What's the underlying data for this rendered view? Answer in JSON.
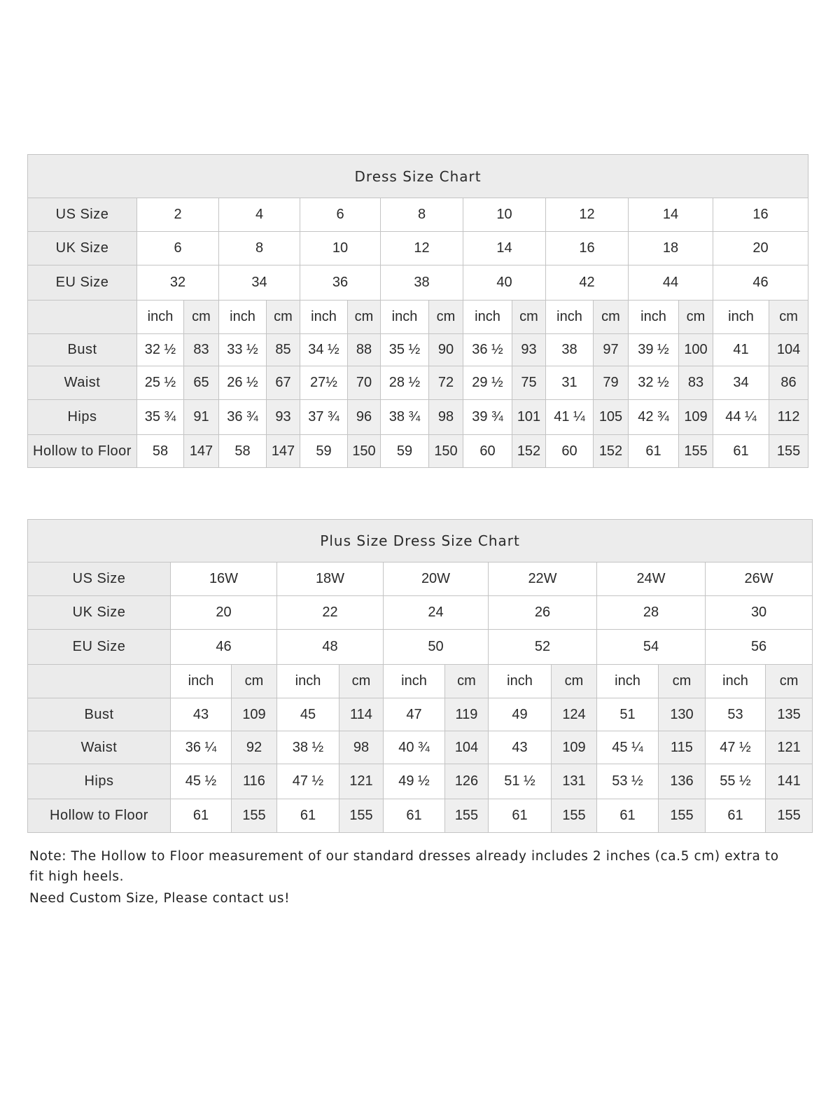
{
  "standard_chart": {
    "title": "Dress Size Chart",
    "row_labels": {
      "us": "US Size",
      "uk": "UK Size",
      "eu": "EU Size",
      "bust": "Bust",
      "waist": "Waist",
      "hips": "Hips",
      "hollow": "Hollow to Floor"
    },
    "unit_labels": {
      "inch": "inch",
      "cm": "cm"
    },
    "us": [
      "2",
      "4",
      "6",
      "8",
      "10",
      "12",
      "14",
      "16"
    ],
    "uk": [
      "6",
      "8",
      "10",
      "12",
      "14",
      "16",
      "18",
      "20"
    ],
    "eu": [
      "32",
      "34",
      "36",
      "38",
      "40",
      "42",
      "44",
      "46"
    ],
    "bust": [
      [
        "32 ½",
        "83"
      ],
      [
        "33 ½",
        "85"
      ],
      [
        "34 ½",
        "88"
      ],
      [
        "35 ½",
        "90"
      ],
      [
        "36 ½",
        "93"
      ],
      [
        "38",
        "97"
      ],
      [
        "39 ½",
        "100"
      ],
      [
        "41",
        "104"
      ]
    ],
    "waist": [
      [
        "25 ½",
        "65"
      ],
      [
        "26 ½",
        "67"
      ],
      [
        "27½",
        "70"
      ],
      [
        "28 ½",
        "72"
      ],
      [
        "29 ½",
        "75"
      ],
      [
        "31",
        "79"
      ],
      [
        "32 ½",
        "83"
      ],
      [
        "34",
        "86"
      ]
    ],
    "hips": [
      [
        "35 ¾",
        "91"
      ],
      [
        "36 ¾",
        "93"
      ],
      [
        "37 ¾",
        "96"
      ],
      [
        "38 ¾",
        "98"
      ],
      [
        "39 ¾",
        "101"
      ],
      [
        "41 ¼",
        "105"
      ],
      [
        "42 ¾",
        "109"
      ],
      [
        "44 ¼",
        "112"
      ]
    ],
    "hollow": [
      [
        "58",
        "147"
      ],
      [
        "58",
        "147"
      ],
      [
        "59",
        "150"
      ],
      [
        "59",
        "150"
      ],
      [
        "60",
        "152"
      ],
      [
        "60",
        "152"
      ],
      [
        "61",
        "155"
      ],
      [
        "61",
        "155"
      ]
    ]
  },
  "plus_chart": {
    "title": "Plus Size Dress Size Chart",
    "row_labels": {
      "us": "US Size",
      "uk": "UK Size",
      "eu": "EU Size",
      "bust": "Bust",
      "waist": "Waist",
      "hips": "Hips",
      "hollow": "Hollow to Floor"
    },
    "unit_labels": {
      "inch": "inch",
      "cm": "cm"
    },
    "us": [
      "16W",
      "18W",
      "20W",
      "22W",
      "24W",
      "26W"
    ],
    "uk": [
      "20",
      "22",
      "24",
      "26",
      "28",
      "30"
    ],
    "eu": [
      "46",
      "48",
      "50",
      "52",
      "54",
      "56"
    ],
    "bust": [
      [
        "43",
        "109"
      ],
      [
        "45",
        "114"
      ],
      [
        "47",
        "119"
      ],
      [
        "49",
        "124"
      ],
      [
        "51",
        "130"
      ],
      [
        "53",
        "135"
      ]
    ],
    "waist": [
      [
        "36 ¼",
        "92"
      ],
      [
        "38 ½",
        "98"
      ],
      [
        "40 ¾",
        "104"
      ],
      [
        "43",
        "109"
      ],
      [
        "45 ¼",
        "115"
      ],
      [
        "47 ½",
        "121"
      ]
    ],
    "hips": [
      [
        "45 ½",
        "116"
      ],
      [
        "47 ½",
        "121"
      ],
      [
        "49 ½",
        "126"
      ],
      [
        "51 ½",
        "131"
      ],
      [
        "53 ½",
        "136"
      ],
      [
        "55 ½",
        "141"
      ]
    ],
    "hollow": [
      [
        "61",
        "155"
      ],
      [
        "61",
        "155"
      ],
      [
        "61",
        "155"
      ],
      [
        "61",
        "155"
      ],
      [
        "61",
        "155"
      ],
      [
        "61",
        "155"
      ]
    ]
  },
  "notes": {
    "line1": "Note: The Hollow to Floor measurement of our standard dresses already includes 2 inches (ca.5 cm) extra to",
    "line2": "fit high heels.",
    "line3": "Need Custom Size, Please contact us!"
  }
}
